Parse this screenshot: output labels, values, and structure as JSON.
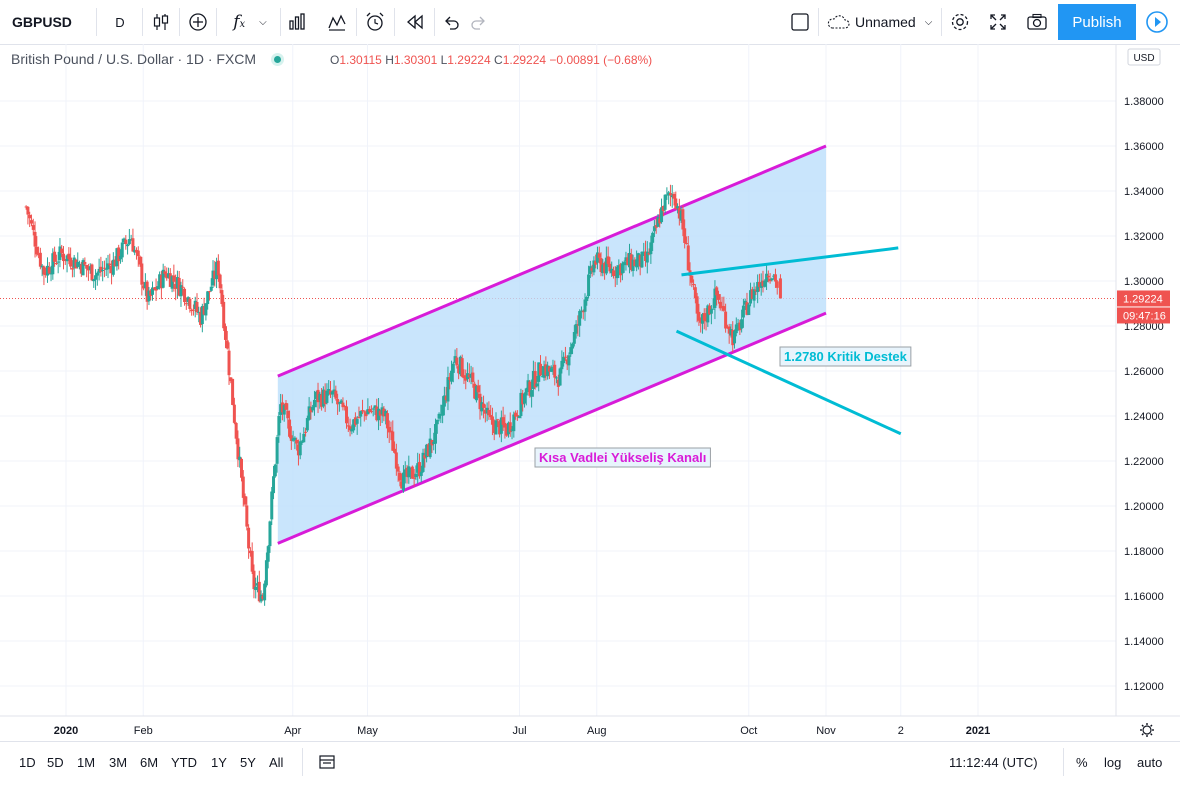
{
  "toolbar": {
    "symbol": "GBPUSD",
    "interval": "D",
    "layout_name": "Unnamed",
    "publish_label": "Publish"
  },
  "legend": {
    "title": "British Pound / U.S. Dollar · 1D · FXCM",
    "open_label": "O",
    "open": "1.30115",
    "high_label": "H",
    "high": "1.30301",
    "low_label": "L",
    "low": "1.29224",
    "close_label": "C",
    "close": "1.29224",
    "change": "−0.00891 (−0.68%)"
  },
  "price_axis": {
    "currency": "USD",
    "ticks": [
      "1.38000",
      "1.36000",
      "1.34000",
      "1.32000",
      "1.30000",
      "1.28000",
      "1.26000",
      "1.24000",
      "1.22000",
      "1.20000",
      "1.18000",
      "1.16000",
      "1.14000",
      "1.12000"
    ],
    "last_price": "1.29224",
    "countdown": "09:47:16"
  },
  "time_axis": {
    "labels": [
      "2020",
      "Feb",
      "Apr",
      "May",
      "Jul",
      "Aug",
      "Oct",
      "Nov",
      "2",
      "2021"
    ]
  },
  "annotations": {
    "channel_label": "Kısa Vadlei Yükseliş Kanalı",
    "support_label": "1.2780 Kritik Destek"
  },
  "bottom_bar": {
    "ranges": [
      "1D",
      "5D",
      "1M",
      "3M",
      "6M",
      "YTD",
      "1Y",
      "5Y",
      "All"
    ],
    "clock": "11:12:44 (UTC)",
    "percent": "%",
    "log": "log",
    "auto": "auto"
  },
  "colors": {
    "up": "#26a69a",
    "down": "#ef5350",
    "channel_line": "#d81bd8",
    "channel_fill": "#bbdefb",
    "support_line": "#00bcd4",
    "accent": "#2196f3"
  },
  "chart_data": {
    "type": "candlestick",
    "symbol": "GBPUSD",
    "timeframe": "1D",
    "y_range": [
      1.11,
      1.385
    ],
    "series_close": [
      {
        "date": "2019-12-16",
        "close": 1.333
      },
      {
        "date": "2019-12-23",
        "close": 1.304
      },
      {
        "date": "2019-12-30",
        "close": 1.312
      },
      {
        "date": "2020-01-06",
        "close": 1.308
      },
      {
        "date": "2020-01-13",
        "close": 1.303
      },
      {
        "date": "2020-01-20",
        "close": 1.308
      },
      {
        "date": "2020-01-27",
        "close": 1.32
      },
      {
        "date": "2020-02-03",
        "close": 1.291
      },
      {
        "date": "2020-02-10",
        "close": 1.304
      },
      {
        "date": "2020-02-17",
        "close": 1.296
      },
      {
        "date": "2020-02-24",
        "close": 1.284
      },
      {
        "date": "2020-03-02",
        "close": 1.307
      },
      {
        "date": "2020-03-09",
        "close": 1.235
      },
      {
        "date": "2020-03-16",
        "close": 1.165
      },
      {
        "date": "2020-03-20",
        "close": 1.16
      },
      {
        "date": "2020-03-27",
        "close": 1.245
      },
      {
        "date": "2020-04-03",
        "close": 1.225
      },
      {
        "date": "2020-04-10",
        "close": 1.248
      },
      {
        "date": "2020-04-17",
        "close": 1.249
      },
      {
        "date": "2020-04-24",
        "close": 1.236
      },
      {
        "date": "2020-05-01",
        "close": 1.243
      },
      {
        "date": "2020-05-08",
        "close": 1.24
      },
      {
        "date": "2020-05-15",
        "close": 1.211
      },
      {
        "date": "2020-05-22",
        "close": 1.217
      },
      {
        "date": "2020-05-29",
        "close": 1.234
      },
      {
        "date": "2020-06-05",
        "close": 1.266
      },
      {
        "date": "2020-06-12",
        "close": 1.254
      },
      {
        "date": "2020-06-19",
        "close": 1.237
      },
      {
        "date": "2020-06-26",
        "close": 1.234
      },
      {
        "date": "2020-07-03",
        "close": 1.249
      },
      {
        "date": "2020-07-10",
        "close": 1.262
      },
      {
        "date": "2020-07-17",
        "close": 1.257
      },
      {
        "date": "2020-07-24",
        "close": 1.279
      },
      {
        "date": "2020-07-31",
        "close": 1.309
      },
      {
        "date": "2020-08-07",
        "close": 1.305
      },
      {
        "date": "2020-08-14",
        "close": 1.308
      },
      {
        "date": "2020-08-21",
        "close": 1.309
      },
      {
        "date": "2020-08-28",
        "close": 1.335
      },
      {
        "date": "2020-09-01",
        "close": 1.339
      },
      {
        "date": "2020-09-04",
        "close": 1.327
      },
      {
        "date": "2020-09-11",
        "close": 1.279
      },
      {
        "date": "2020-09-18",
        "close": 1.294
      },
      {
        "date": "2020-09-25",
        "close": 1.274
      },
      {
        "date": "2020-10-02",
        "close": 1.294
      },
      {
        "date": "2020-10-09",
        "close": 1.305
      },
      {
        "date": "2020-10-12",
        "close": 1.301
      },
      {
        "date": "2020-10-13",
        "close": 1.292
      }
    ],
    "last_bar": {
      "open": 1.30115,
      "high": 1.30301,
      "low": 1.29224,
      "close": 1.29224
    }
  }
}
